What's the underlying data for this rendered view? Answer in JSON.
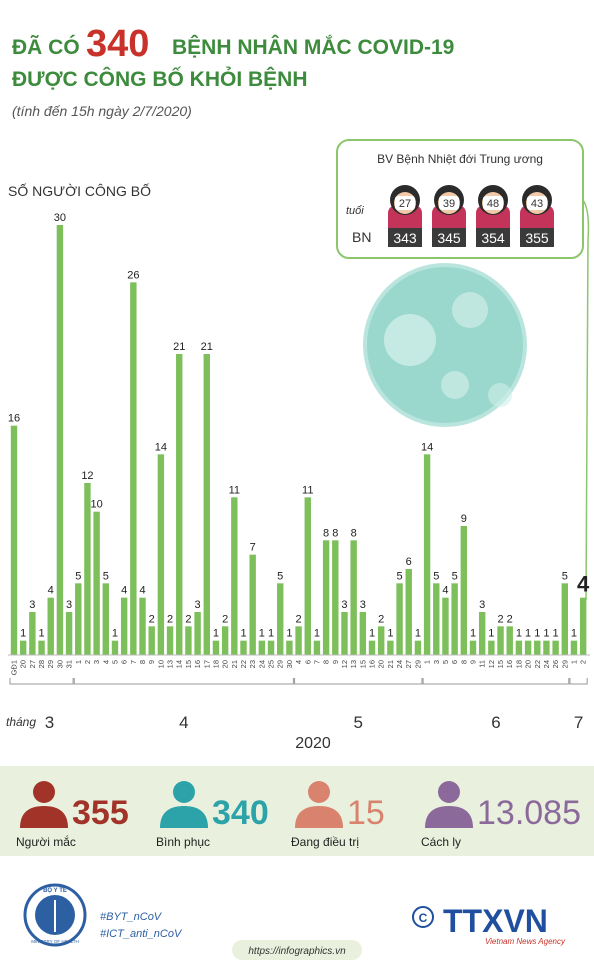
{
  "header": {
    "title_prefix": "ĐÃ CÓ",
    "title_number": "340",
    "title_suffix": "BỆNH NHÂN MẮC COVID-19",
    "title_line2": "ĐƯỢC CÔNG BỐ KHỎI BỆNH",
    "subtitle": "(tính đến 15h ngày 2/7/2020)"
  },
  "chart_data": {
    "type": "bar",
    "ylabel": "SỐ NGƯỜI CÔNG BỐ",
    "color": "#7dbf5a",
    "ylim": [
      0,
      30
    ],
    "month_prefix": "tháng",
    "year": "2020",
    "groups": [
      {
        "label": "3",
        "categories": [
          "GĐ1",
          "20",
          "27",
          "28",
          "29",
          "30",
          "31"
        ],
        "values": [
          16,
          1,
          3,
          1,
          4,
          30,
          3
        ]
      },
      {
        "label": "4",
        "categories": [
          "1",
          "2",
          "3",
          "4",
          "5",
          "6",
          "7",
          "8",
          "9",
          "10",
          "13",
          "14",
          "15",
          "16",
          "17",
          "18",
          "20",
          "21",
          "22",
          "23",
          "24",
          "25",
          "29",
          "30"
        ],
        "values": [
          5,
          12,
          10,
          5,
          1,
          4,
          26,
          4,
          2,
          14,
          2,
          21,
          2,
          3,
          21,
          1,
          2,
          11,
          1,
          7,
          1,
          1,
          5,
          1
        ]
      },
      {
        "label": "5",
        "categories": [
          "4",
          "6",
          "7",
          "8",
          "9",
          "12",
          "13",
          "15",
          "16",
          "20",
          "21",
          "24",
          "27",
          "29"
        ],
        "values": [
          2,
          11,
          1,
          8,
          8,
          3,
          8,
          3,
          1,
          2,
          1,
          5,
          6,
          1
        ]
      },
      {
        "label": "6",
        "categories": [
          "1",
          "3",
          "5",
          "6",
          "8",
          "9",
          "11",
          "12",
          "15",
          "16",
          "18",
          "20",
          "22",
          "24",
          "26",
          "29"
        ],
        "values": [
          14,
          5,
          4,
          5,
          9,
          1,
          3,
          1,
          2,
          2,
          1,
          1,
          1,
          1,
          1,
          5
        ]
      },
      {
        "label": "7",
        "categories": [
          "1",
          "2"
        ],
        "values": [
          1,
          4
        ]
      }
    ]
  },
  "inset": {
    "title": "BV Bệnh Nhiệt đới Trung ương",
    "age_label": "tuổi",
    "id_label": "BN",
    "patients": [
      {
        "age": "27",
        "id": "343"
      },
      {
        "age": "39",
        "id": "345"
      },
      {
        "age": "48",
        "id": "354"
      },
      {
        "age": "43",
        "id": "355"
      }
    ]
  },
  "stats": [
    {
      "number": "355",
      "label": "Người mắc",
      "color": "#a23328"
    },
    {
      "number": "340",
      "label": "Bình phục",
      "color": "#2ba3a8"
    },
    {
      "number": "15",
      "label": "Đang điều trị",
      "color": "#d9836f"
    },
    {
      "number": "13.085",
      "label": "Cách ly",
      "color": "#8b6a9b"
    }
  ],
  "footer": {
    "logo_top": "BỘ Y TẾ",
    "logo_bottom": "MINISTRY OF HEALTH",
    "hashtags": [
      "#BYT_nCoV",
      "#ICT_anti_nCoV"
    ],
    "url": "https://infographics.vn",
    "agency": "TTXVN",
    "agency_sub": "Vietnam News Agency"
  }
}
